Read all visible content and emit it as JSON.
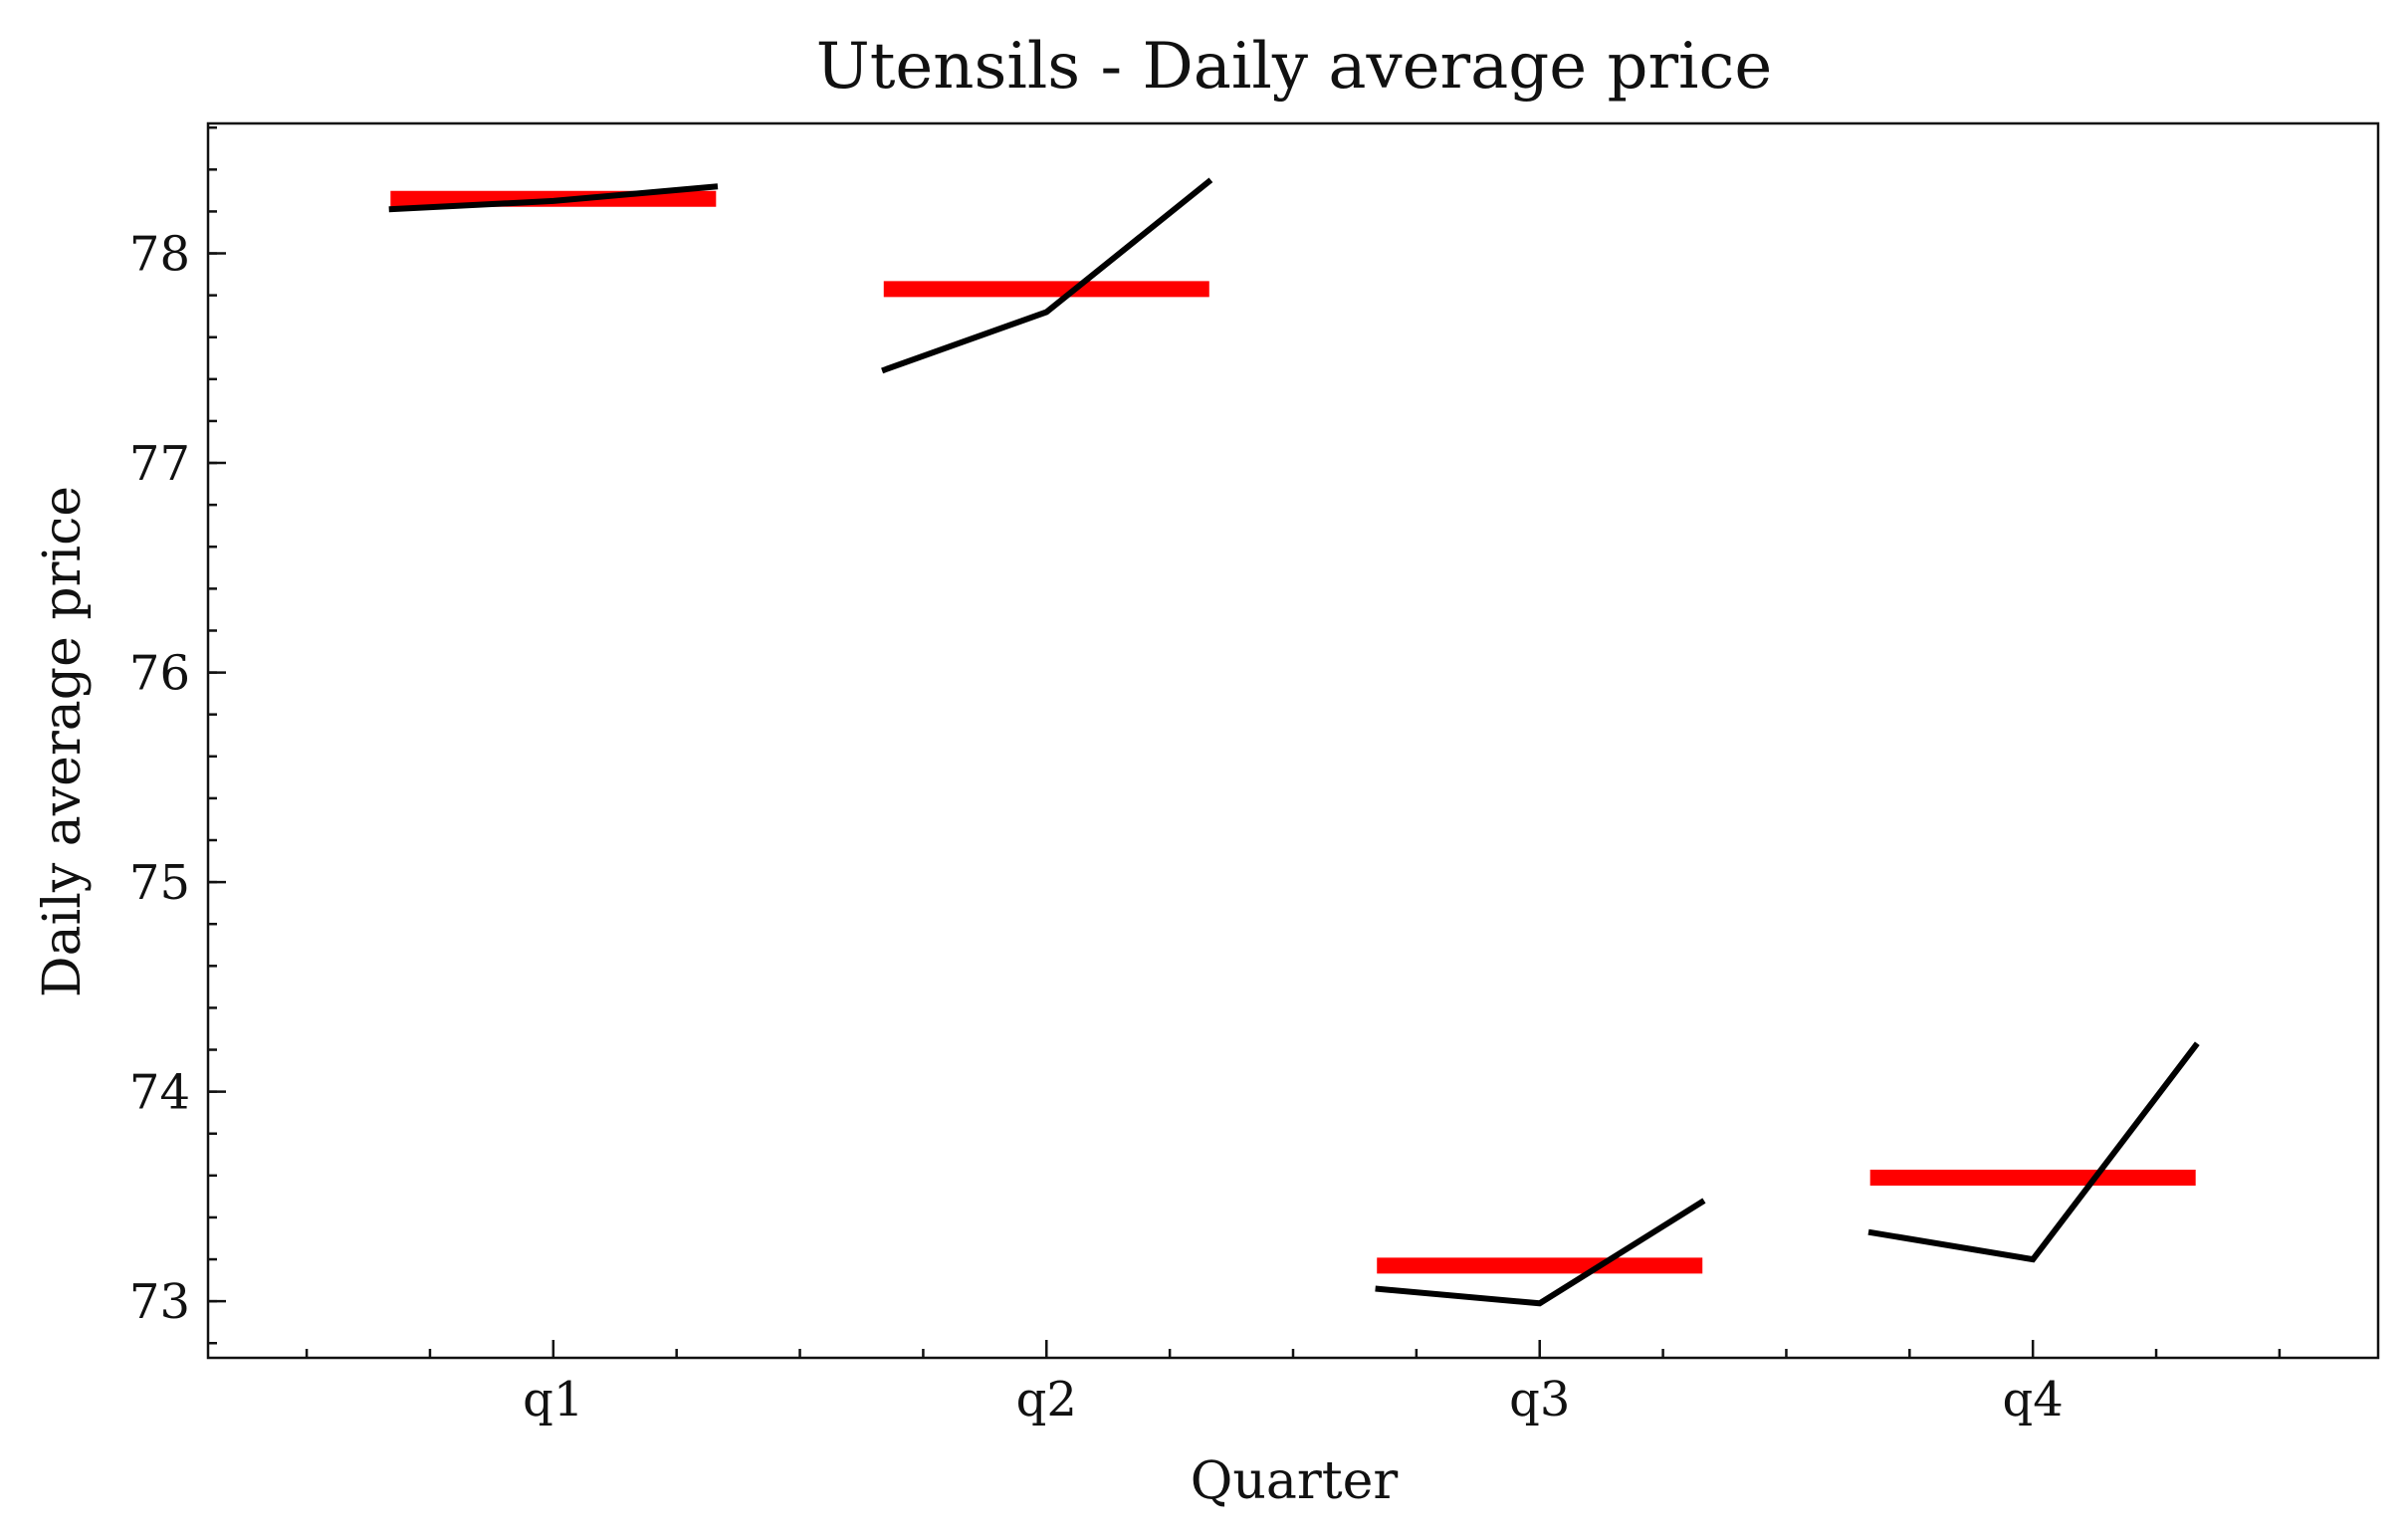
{
  "chart_data": {
    "type": "line",
    "title": "Utensils - Daily average price",
    "xlabel": "Quarter",
    "ylabel": "Daily average price",
    "categories": [
      "q1",
      "q2",
      "q3",
      "q4"
    ],
    "ylim": [
      72.73,
      78.62
    ],
    "xlim": [
      -0.7,
      3.7
    ],
    "yticks": [
      73,
      74,
      75,
      76,
      77,
      78
    ],
    "y_minor_step": 0.2,
    "x_minor_step": 0.25,
    "grid": false,
    "legend": "none",
    "series": [
      {
        "role": "monthly",
        "color": "#000000",
        "segments": [
          {
            "category": "q1",
            "values": [
              78.21,
              78.25,
              78.32
            ]
          },
          {
            "category": "q2",
            "values": [
              77.44,
              77.72,
              78.35
            ]
          },
          {
            "category": "q3",
            "values": [
              73.06,
              72.99,
              73.48
            ]
          },
          {
            "category": "q4",
            "values": [
              73.33,
              73.2,
              74.23
            ]
          }
        ]
      },
      {
        "role": "quarterly-mean",
        "color": "#ff0000",
        "values": [
          78.26,
          77.83,
          73.17,
          73.59
        ]
      }
    ]
  }
}
